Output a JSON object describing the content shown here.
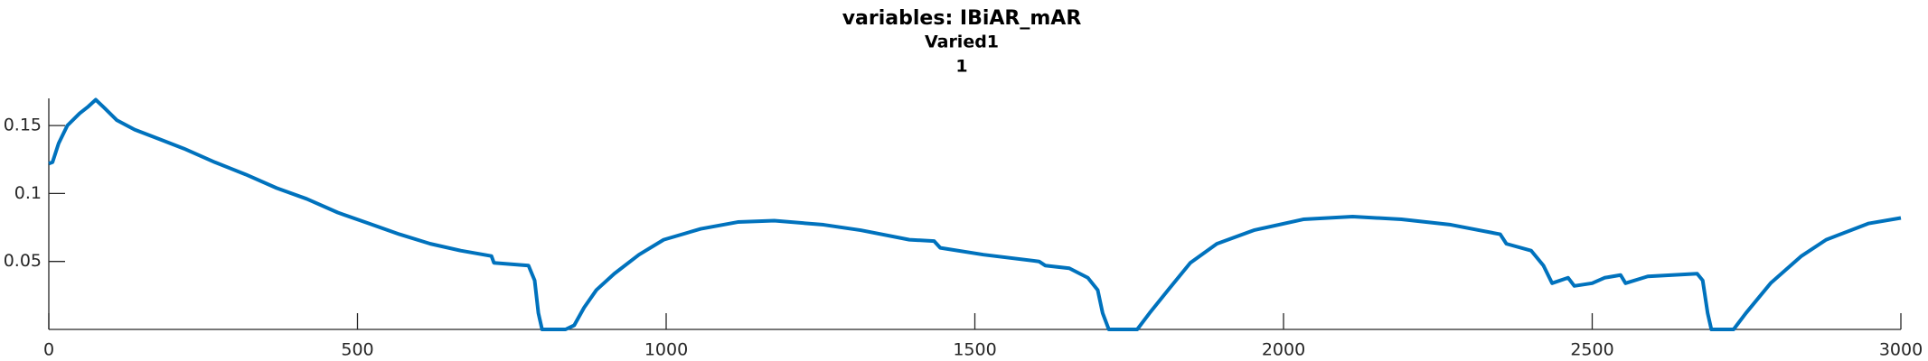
{
  "chart_data": {
    "type": "line",
    "title": "variables: IBiAR_mAR",
    "subtitle": "Varied1",
    "subtitle2": "1",
    "x": [
      0,
      6,
      16,
      30,
      50,
      64,
      76,
      90,
      110,
      139,
      179,
      219,
      269,
      319,
      369,
      418,
      468,
      518,
      568,
      618,
      667,
      717,
      721,
      777,
      787,
      793,
      799,
      837,
      851,
      867,
      887,
      916,
      956,
      996,
      1056,
      1116,
      1175,
      1255,
      1315,
      1394,
      1434,
      1444,
      1514,
      1604,
      1614,
      1653,
      1683,
      1699,
      1707,
      1717,
      1763,
      1783,
      1813,
      1849,
      1892,
      1952,
      2032,
      2112,
      2191,
      2271,
      2351,
      2361,
      2401,
      2421,
      2435,
      2461,
      2471,
      2500,
      2520,
      2546,
      2554,
      2590,
      2670,
      2679,
      2687,
      2693,
      2729,
      2749,
      2789,
      2839,
      2879,
      2948,
      3000
    ],
    "series": [
      {
        "color": "#0072bd",
        "values": [
          0.122,
          0.123,
          0.137,
          0.15,
          0.159,
          0.164,
          0.169,
          0.163,
          0.154,
          0.147,
          0.14,
          0.133,
          0.123,
          0.114,
          0.104,
          0.096,
          0.086,
          0.078,
          0.07,
          0.063,
          0.058,
          0.054,
          0.049,
          0.047,
          0.036,
          0.012,
          0,
          0,
          0.003,
          0.016,
          0.029,
          0.041,
          0.055,
          0.066,
          0.074,
          0.079,
          0.08,
          0.077,
          0.073,
          0.066,
          0.065,
          0.06,
          0.055,
          0.05,
          0.047,
          0.045,
          0.038,
          0.029,
          0.012,
          0,
          0,
          0.012,
          0.029,
          0.049,
          0.063,
          0.073,
          0.081,
          0.083,
          0.081,
          0.077,
          0.07,
          0.063,
          0.058,
          0.047,
          0.034,
          0.038,
          0.032,
          0.034,
          0.038,
          0.04,
          0.034,
          0.039,
          0.041,
          0.036,
          0.012,
          0,
          0,
          0.012,
          0.034,
          0.054,
          0.066,
          0.078,
          0.082
        ]
      }
    ],
    "xlim": [
      0,
      3000
    ],
    "xticks": [
      0,
      500,
      1000,
      1500,
      2000,
      2500,
      3000
    ],
    "ylim": [
      0,
      0.17
    ],
    "yticks": [
      0.05,
      0.1,
      0.15
    ]
  }
}
